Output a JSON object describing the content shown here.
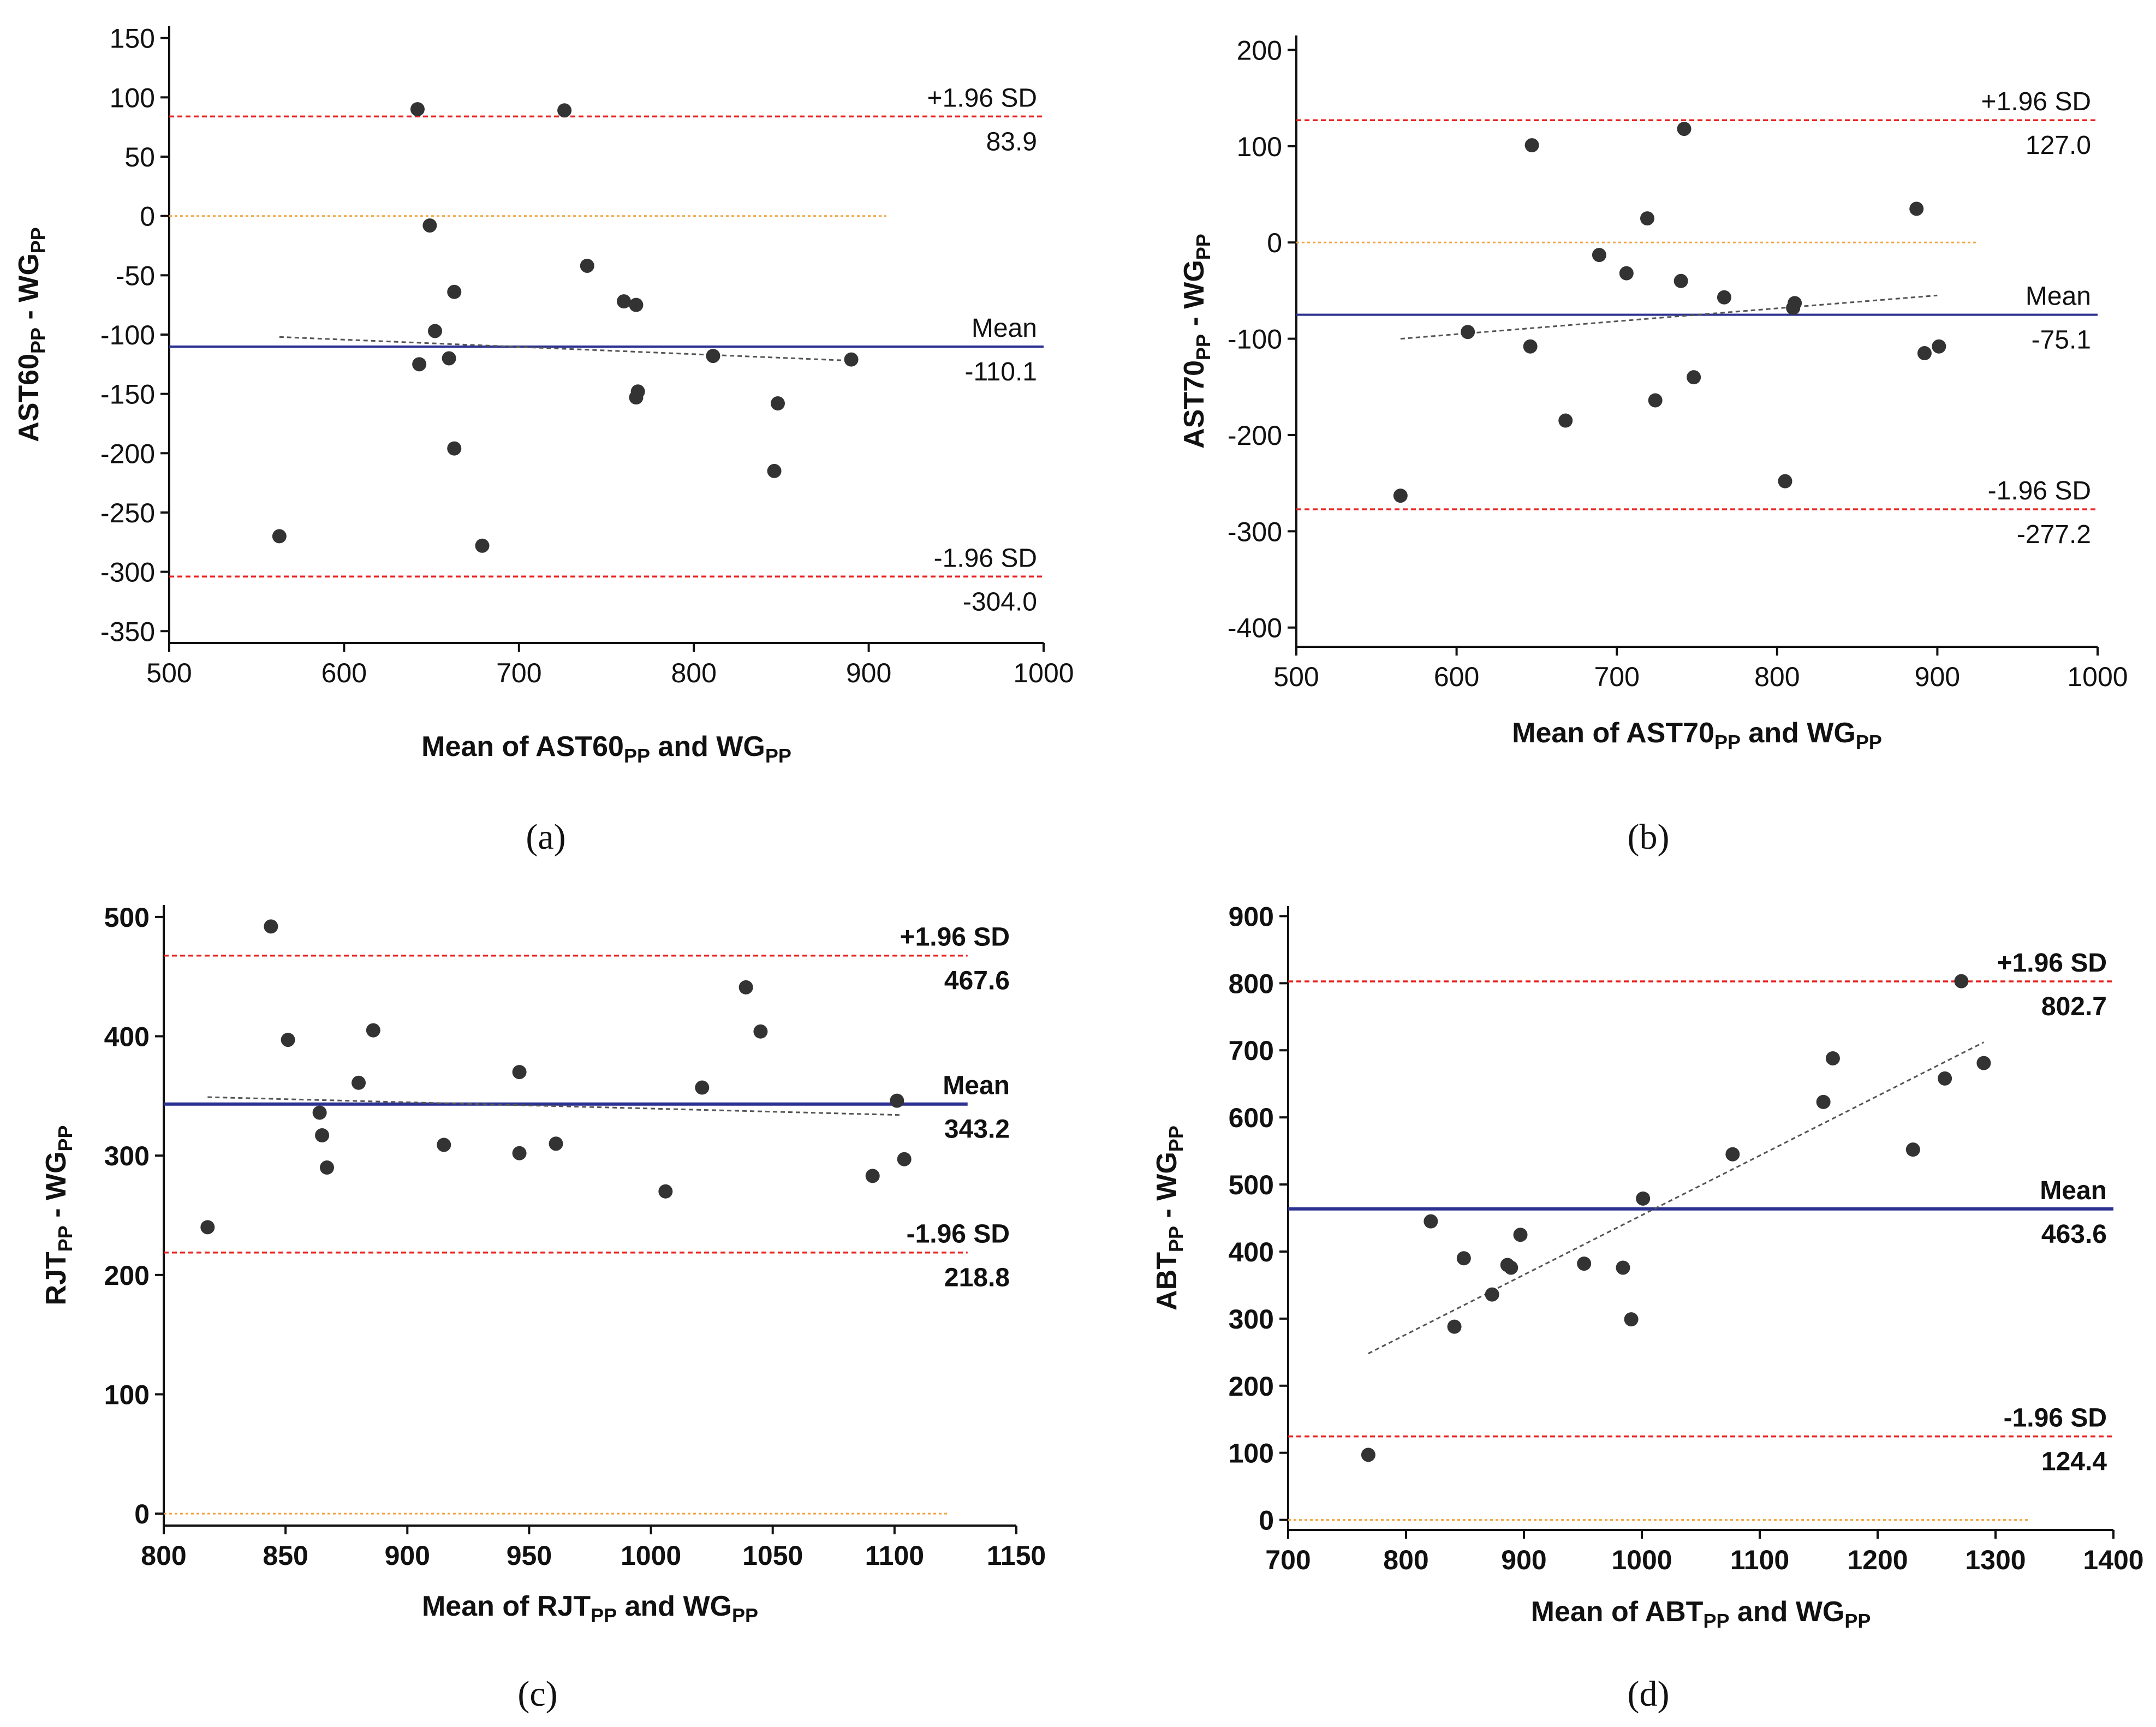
{
  "colors": {
    "limit": "#e8201e",
    "zero": "#f3a441",
    "mean_line": "#2b3191",
    "regression": "#555555",
    "points": "#333333",
    "axis": "#111111"
  },
  "chart_data": [
    {
      "type": "scatter",
      "panel_label": "(a)",
      "xlabel": {
        "pre": "Mean of AST60",
        "sub1": "PP",
        "mid": " and WG",
        "sub2": "PP"
      },
      "ylabel": {
        "pre": "AST60",
        "sub1": "PP",
        "mid": " - WG",
        "sub2": "PP"
      },
      "xlim": [
        500,
        1000
      ],
      "ylim": [
        -360,
        160
      ],
      "xticks": [
        500,
        600,
        700,
        800,
        900,
        1000
      ],
      "yticks": [
        150,
        100,
        50,
        0,
        -50,
        -100,
        -150,
        -200,
        -250,
        -300,
        -350
      ],
      "tick_font": "normal",
      "grid": false,
      "upper_loa": {
        "value": 83.9,
        "label": "+1.96 SD",
        "value_label": "83.9"
      },
      "mean": {
        "value": -110.1,
        "label": "Mean",
        "value_label": "-110.1"
      },
      "lower_loa": {
        "value": -304.0,
        "label": "-1.96 SD",
        "value_label": "-304.0"
      },
      "zero_line_x": [
        500,
        910
      ],
      "mean_line_x": [
        500,
        1000
      ],
      "loa_line_x": [
        500,
        1000
      ],
      "regression": {
        "x": [
          563,
          890
        ],
        "y": [
          -102,
          -122
        ]
      },
      "points": {
        "x": [
          642,
          726,
          649,
          663,
          652,
          660,
          643,
          663,
          739,
          760,
          767,
          768,
          767,
          811,
          848,
          846,
          890,
          563,
          679
        ],
        "y": [
          90,
          89,
          -8,
          -64,
          -97,
          -120,
          -125,
          -196,
          -42,
          -72,
          -75,
          -148,
          -153,
          -118,
          -158,
          -215,
          -121,
          -270,
          -278
        ]
      }
    },
    {
      "type": "scatter",
      "panel_label": "(b)",
      "xlabel": {
        "pre": "Mean of AST70",
        "sub1": "PP",
        "mid": " and WG",
        "sub2": "PP"
      },
      "ylabel": {
        "pre": "AST70",
        "sub1": "PP",
        "mid": " - WG",
        "sub2": "PP"
      },
      "xlim": [
        500,
        1000
      ],
      "ylim": [
        -420,
        215
      ],
      "xticks": [
        500,
        600,
        700,
        800,
        900,
        1000
      ],
      "yticks": [
        200,
        100,
        0,
        -100,
        -200,
        -300,
        -400
      ],
      "tick_font": "normal",
      "grid": false,
      "upper_loa": {
        "value": 127.0,
        "label": "+1.96 SD",
        "value_label": "127.0"
      },
      "mean": {
        "value": -75.1,
        "label": "Mean",
        "value_label": "-75.1"
      },
      "lower_loa": {
        "value": -277.2,
        "label": "-1.96 SD",
        "value_label": "-277.2"
      },
      "zero_line_x": [
        500,
        925
      ],
      "mean_line_x": [
        500,
        1000
      ],
      "loa_line_x": [
        500,
        1000
      ],
      "regression": {
        "x": [
          565,
          900
        ],
        "y": [
          -100,
          -55
        ]
      },
      "points": {
        "x": [
          647,
          742,
          719,
          887,
          689,
          706,
          740,
          767,
          607,
          646,
          811,
          810,
          892,
          901,
          668,
          748,
          724,
          805,
          565
        ],
        "y": [
          101,
          118,
          25,
          35,
          -13,
          -32,
          -40,
          -57,
          -93,
          -108,
          -63,
          -68,
          -115,
          -108,
          -185,
          -140,
          -164,
          -248,
          -263
        ]
      }
    },
    {
      "type": "scatter",
      "panel_label": "(c)",
      "xlabel": {
        "pre": "Mean of RJT",
        "sub1": "PP",
        "mid": " and WG",
        "sub2": "PP"
      },
      "ylabel": {
        "pre": "RJT",
        "sub1": "PP",
        "mid": " - WG",
        "sub2": "PP"
      },
      "xlim": [
        800,
        1150
      ],
      "ylim": [
        -10,
        510
      ],
      "xticks": [
        800,
        850,
        900,
        950,
        1000,
        1050,
        1100,
        1150
      ],
      "yticks": [
        500,
        400,
        300,
        200,
        100,
        0
      ],
      "tick_font": "bold",
      "grid": false,
      "upper_loa": {
        "value": 467.6,
        "label": "+1.96 SD",
        "value_label": "467.6"
      },
      "mean": {
        "value": 343.2,
        "label": "Mean",
        "value_label": "343.2"
      },
      "lower_loa": {
        "value": 218.8,
        "label": "-1.96 SD",
        "value_label": "218.8"
      },
      "zero_line_x": [
        800,
        1122
      ],
      "mean_line_x": [
        800,
        1130
      ],
      "loa_line_x": [
        800,
        1130
      ],
      "regression": {
        "x": [
          818,
          1103
        ],
        "y": [
          349,
          334
        ]
      },
      "points": {
        "x": [
          844,
          851,
          886,
          880,
          864,
          865,
          867,
          946,
          946,
          961,
          915,
          1039,
          1045,
          1021,
          1101,
          1104,
          1091,
          1006,
          818
        ],
        "y": [
          492,
          397,
          405,
          361,
          336,
          317,
          290,
          370,
          302,
          310,
          309,
          441,
          404,
          357,
          346,
          297,
          283,
          270,
          240
        ]
      }
    },
    {
      "type": "scatter",
      "panel_label": "(d)",
      "xlabel": {
        "pre": "Mean of ABT",
        "sub1": "PP",
        "mid": " and WG",
        "sub2": "PP"
      },
      "ylabel": {
        "pre": "ABT",
        "sub1": "PP",
        "mid": " - WG",
        "sub2": "PP"
      },
      "xlim": [
        700,
        1400
      ],
      "ylim": [
        -15,
        915
      ],
      "xticks": [
        700,
        800,
        900,
        1000,
        1100,
        1200,
        1300,
        1400
      ],
      "yticks": [
        900,
        800,
        700,
        600,
        500,
        400,
        300,
        200,
        100,
        0
      ],
      "tick_font": "bold",
      "grid": false,
      "upper_loa": {
        "value": 802.7,
        "label": "+1.96 SD",
        "value_label": "802.7"
      },
      "mean": {
        "value": 463.6,
        "label": "Mean",
        "value_label": "463.6"
      },
      "lower_loa": {
        "value": 124.4,
        "label": "-1.96 SD",
        "value_label": "124.4"
      },
      "zero_line_x": [
        700,
        1328
      ],
      "mean_line_x": [
        700,
        1400
      ],
      "loa_line_x": [
        700,
        1400
      ],
      "regression": {
        "x": [
          768,
          1290
        ],
        "y": [
          248,
          712
        ]
      },
      "points": {
        "x": [
          768,
          821,
          841,
          849,
          873,
          886,
          889,
          897,
          951,
          984,
          991,
          1001,
          1077,
          1154,
          1162,
          1230,
          1257,
          1271,
          1290
        ],
        "y": [
          97,
          445,
          288,
          390,
          336,
          380,
          376,
          425,
          382,
          376,
          299,
          479,
          545,
          623,
          688,
          552,
          658,
          803,
          681
        ]
      }
    }
  ]
}
